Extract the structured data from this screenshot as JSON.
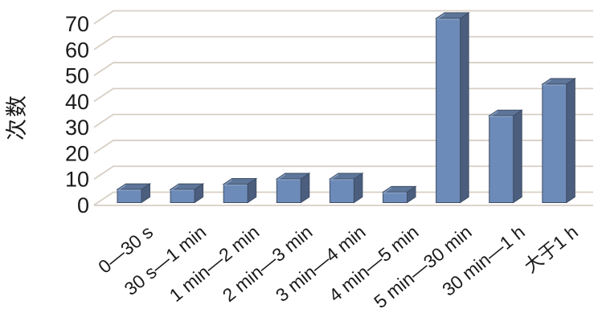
{
  "chart_data": {
    "type": "bar",
    "style": "3d-column",
    "title": "",
    "xlabel": "",
    "ylabel": "次数",
    "categories": [
      "0—30 s",
      "30 s—1 min",
      "1 min—2 min",
      "2 min—3 min",
      "3 min—4 min",
      "4 min—5 min",
      "5 min—30 min",
      "30 min—1 h",
      "大于1 h"
    ],
    "values": [
      5,
      5,
      7,
      9,
      9,
      4,
      70,
      33,
      45
    ],
    "yticks": [
      "0",
      "10",
      "20",
      "30",
      "40",
      "50",
      "60",
      "70"
    ],
    "ylim": [
      0,
      70
    ],
    "grid": true,
    "legend": "none",
    "colors": {
      "bar_front": "#6d8bb8",
      "bar_top": "#5d7598",
      "bar_side": "#4c5e7e",
      "bar_edge": "#3e4e66",
      "bar_highlight": "#8ba3c6",
      "gridline": "#d7cfc5",
      "text": "#1a1a1a",
      "background": "#ffffff"
    }
  }
}
